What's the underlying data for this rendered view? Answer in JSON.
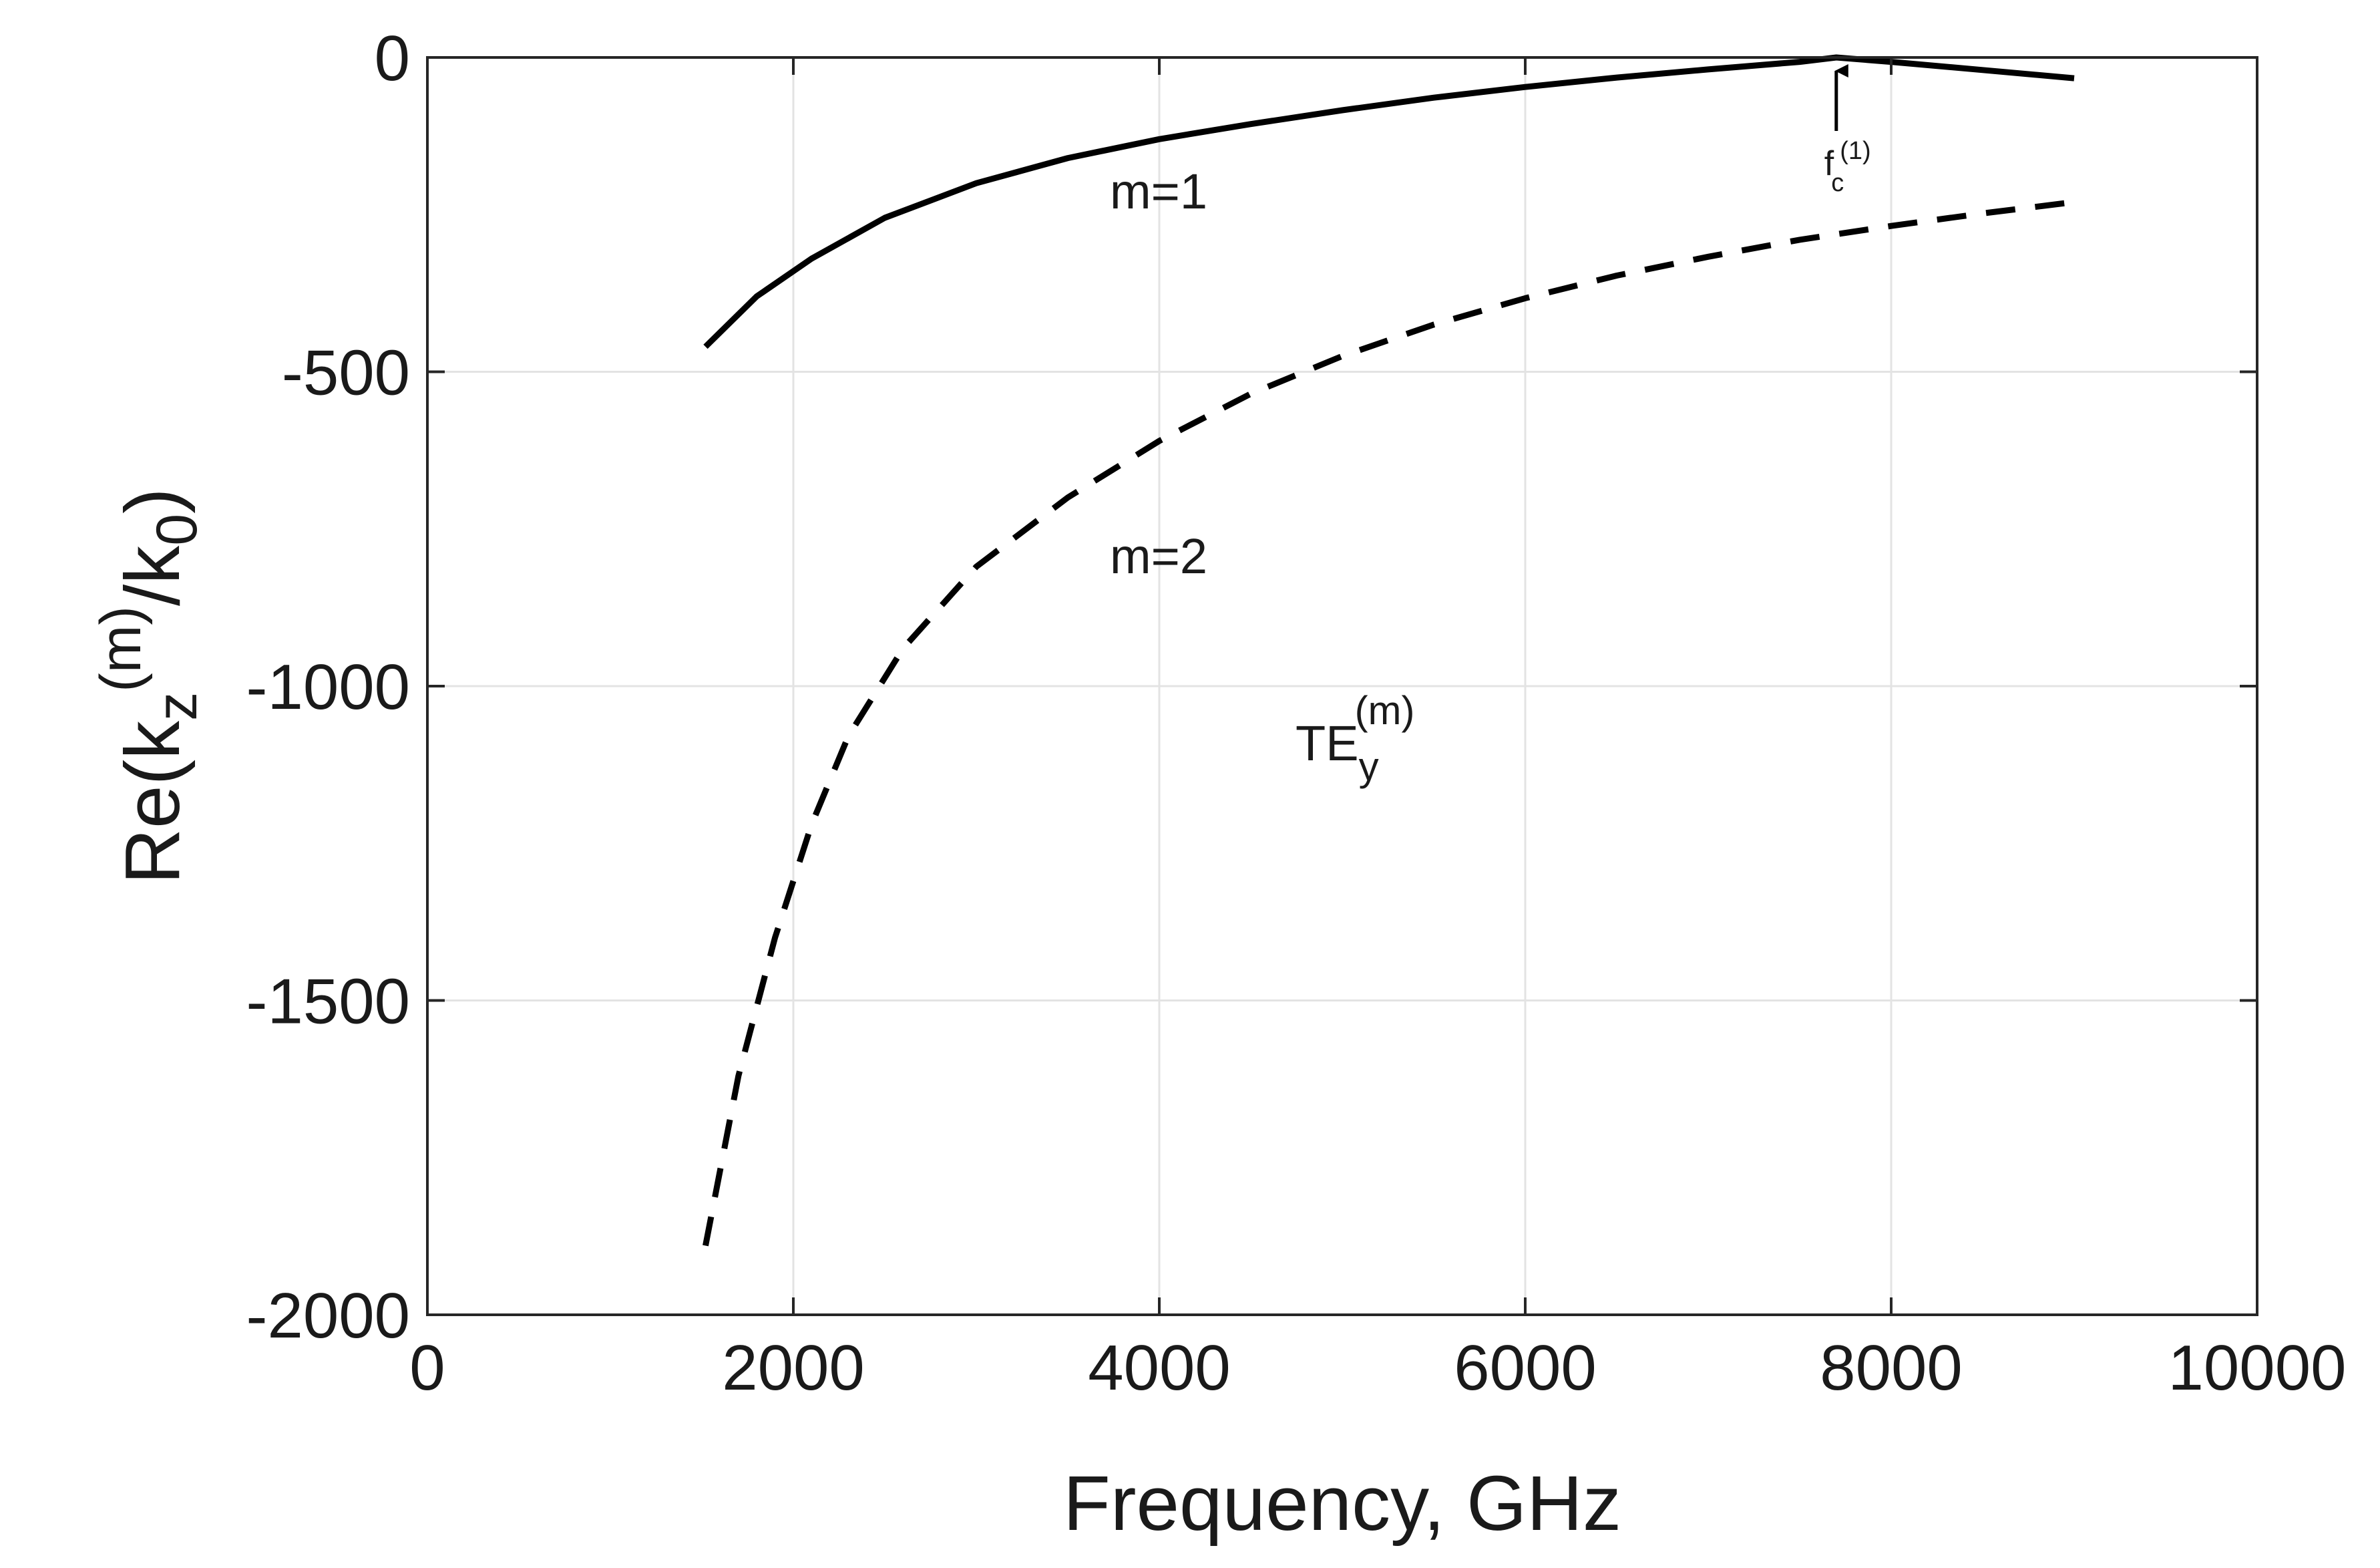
{
  "chart_data": {
    "type": "line",
    "xlabel": "Frequency, GHz",
    "ylabel": {
      "base": "Re(k",
      "sub1": "z",
      "sup1": "(m)",
      "mid": "/k",
      "sub2": "0",
      "end": ")"
    },
    "xlim": [
      0,
      10000
    ],
    "ylim": [
      -2000,
      0
    ],
    "grid": true,
    "x_ticks": [
      0,
      2000,
      4000,
      6000,
      8000,
      10000
    ],
    "y_ticks": [
      0,
      -500,
      -1000,
      -1500,
      -2000
    ],
    "x_tick_labels": [
      "0",
      "2000",
      "4000",
      "6000",
      "8000",
      "10000"
    ],
    "y_tick_labels": [
      "0",
      "-500",
      "-1000",
      "-1500",
      "-2000"
    ],
    "series": [
      {
        "name": "m=1",
        "style": "solid",
        "color": "#000000",
        "x": [
          1520,
          1800,
          2100,
          2500,
          3000,
          3500,
          4000,
          4500,
          5000,
          5500,
          6000,
          6500,
          7000,
          7500,
          7700,
          8000,
          8500,
          9000
        ],
        "y": [
          -460,
          -380,
          -320,
          -255,
          -200,
          -160,
          -130,
          -106,
          -84,
          -64,
          -47,
          -32,
          -19,
          -7,
          0,
          -7,
          -20,
          -33
        ]
      },
      {
        "name": "m=2",
        "style": "dashed",
        "color": "#000000",
        "x": [
          1520,
          1700,
          1900,
          2100,
          2300,
          2600,
          3000,
          3500,
          4000,
          4500,
          5000,
          5500,
          6000,
          6500,
          7000,
          7500,
          8000,
          8500,
          9000
        ],
        "y": [
          -1890,
          -1620,
          -1400,
          -1220,
          -1080,
          -940,
          -810,
          -700,
          -610,
          -535,
          -475,
          -425,
          -383,
          -347,
          -317,
          -290,
          -268,
          -248,
          -230
        ]
      }
    ],
    "annotations": {
      "m1_label": "m=1",
      "m2_label": "m=2",
      "te_base": "TE",
      "te_sub": "y",
      "te_sup": "(m)",
      "fc_base": "f",
      "fc_sub": "c",
      "fc_sup": "(1)",
      "fc_x": 7700
    }
  }
}
